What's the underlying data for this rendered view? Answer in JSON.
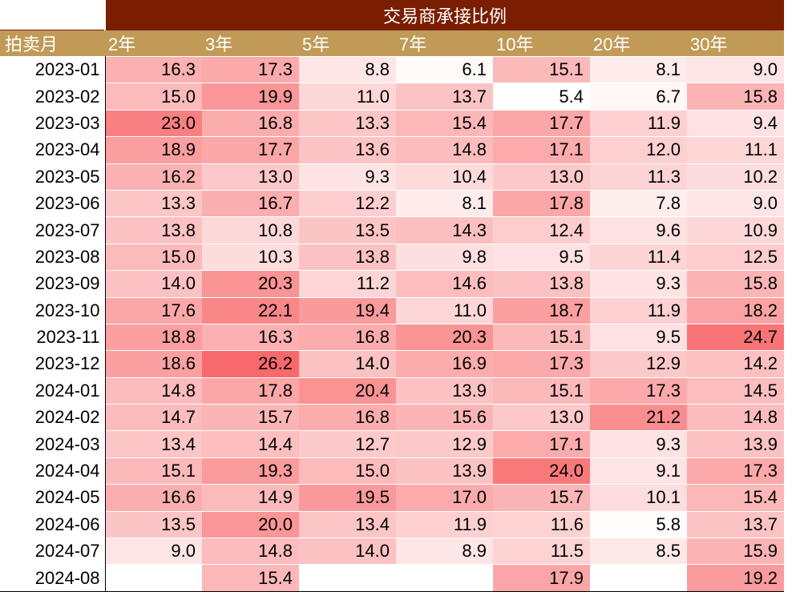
{
  "chart_data": {
    "type": "heatmap",
    "title": "交易商承接比例",
    "row_header": "拍卖月",
    "columns": [
      "2年",
      "3年",
      "5年",
      "7年",
      "10年",
      "20年",
      "30年"
    ],
    "rows": [
      {
        "month": "2023-01",
        "values": [
          16.3,
          17.3,
          8.8,
          6.1,
          15.1,
          8.1,
          9.0
        ]
      },
      {
        "month": "2023-02",
        "values": [
          15.0,
          19.9,
          11.0,
          13.7,
          5.4,
          6.7,
          15.8
        ]
      },
      {
        "month": "2023-03",
        "values": [
          23.0,
          16.8,
          13.3,
          15.4,
          17.7,
          11.9,
          9.4
        ]
      },
      {
        "month": "2023-04",
        "values": [
          18.9,
          17.7,
          13.6,
          14.8,
          17.1,
          12.0,
          11.1
        ]
      },
      {
        "month": "2023-05",
        "values": [
          16.2,
          13.0,
          9.3,
          10.4,
          13.0,
          11.3,
          10.2
        ]
      },
      {
        "month": "2023-06",
        "values": [
          13.3,
          16.7,
          12.2,
          8.1,
          17.8,
          7.8,
          9.0
        ]
      },
      {
        "month": "2023-07",
        "values": [
          13.8,
          10.8,
          13.5,
          14.3,
          12.4,
          9.6,
          10.9
        ]
      },
      {
        "month": "2023-08",
        "values": [
          15.0,
          10.3,
          13.8,
          9.8,
          9.5,
          11.4,
          12.5
        ]
      },
      {
        "month": "2023-09",
        "values": [
          14.0,
          20.3,
          11.2,
          14.6,
          13.8,
          9.3,
          15.8
        ]
      },
      {
        "month": "2023-10",
        "values": [
          17.6,
          22.1,
          19.4,
          11.0,
          18.7,
          11.9,
          18.2
        ]
      },
      {
        "month": "2023-11",
        "values": [
          18.8,
          16.3,
          16.8,
          20.3,
          15.1,
          9.5,
          24.7
        ]
      },
      {
        "month": "2023-12",
        "values": [
          18.6,
          26.2,
          14.0,
          16.9,
          17.3,
          12.9,
          14.2
        ]
      },
      {
        "month": "2024-01",
        "values": [
          14.8,
          17.8,
          20.4,
          13.9,
          15.1,
          17.3,
          14.5
        ]
      },
      {
        "month": "2024-02",
        "values": [
          14.7,
          15.7,
          16.8,
          15.6,
          13.0,
          21.2,
          14.8
        ]
      },
      {
        "month": "2024-03",
        "values": [
          13.4,
          14.4,
          12.7,
          12.9,
          17.1,
          9.3,
          13.9
        ]
      },
      {
        "month": "2024-04",
        "values": [
          15.1,
          19.3,
          15.0,
          13.9,
          24.0,
          9.1,
          17.3
        ]
      },
      {
        "month": "2024-05",
        "values": [
          16.6,
          14.9,
          19.5,
          17.0,
          15.7,
          10.1,
          15.4
        ]
      },
      {
        "month": "2024-06",
        "values": [
          13.5,
          20.0,
          13.4,
          11.9,
          11.6,
          5.8,
          13.7
        ]
      },
      {
        "month": "2024-07",
        "values": [
          9.0,
          14.8,
          14.0,
          8.9,
          11.5,
          8.5,
          15.9
        ]
      },
      {
        "month": "2024-08",
        "values": [
          null,
          15.4,
          null,
          null,
          17.9,
          null,
          19.2
        ]
      }
    ],
    "color_scale": {
      "low": "#ffffff",
      "high": "#f8696b"
    }
  }
}
